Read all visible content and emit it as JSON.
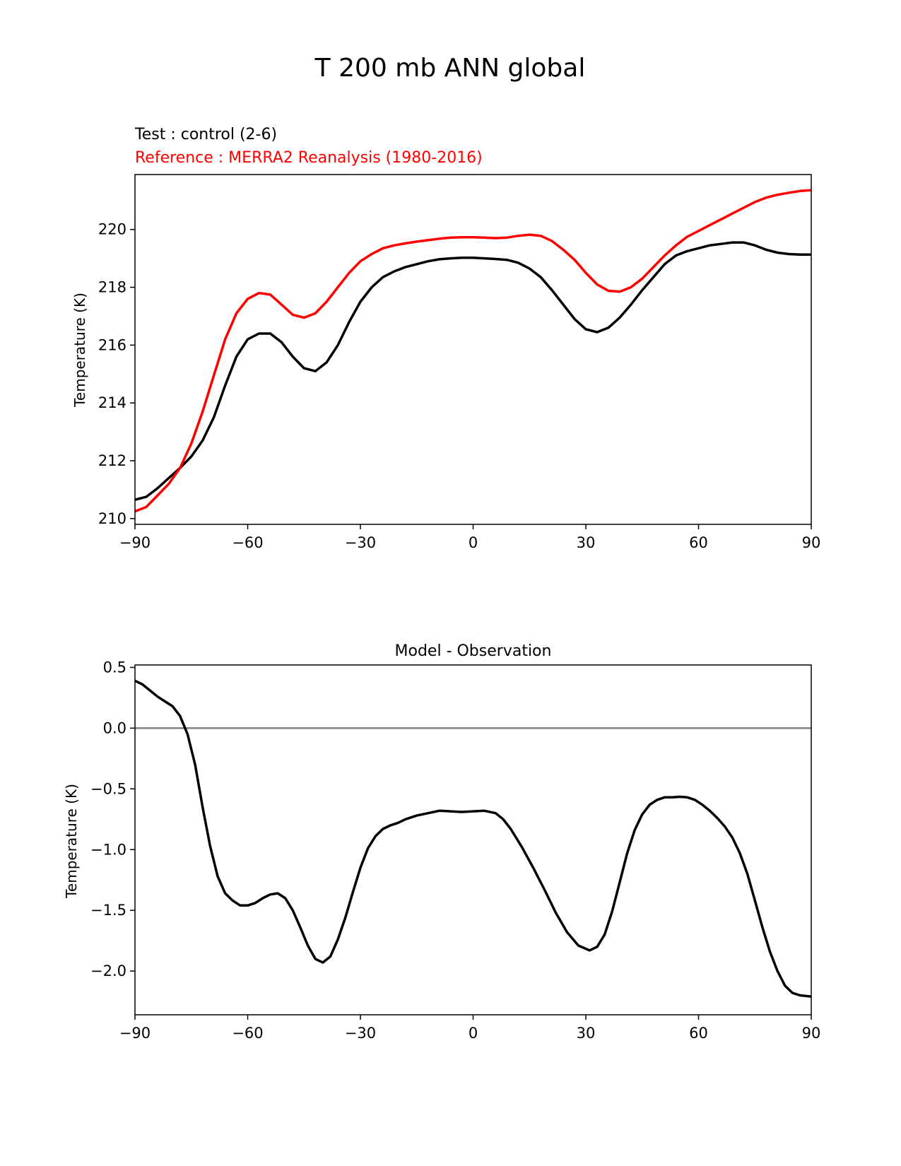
{
  "figure_title": "T 200 mb ANN global",
  "chart_data": [
    {
      "type": "line",
      "subtitle_test": "Test : control (2-6)",
      "subtitle_reference": "Reference : MERRA2 Reanalysis (1980-2016)",
      "xlabel": "",
      "ylabel": "Temperature (K)",
      "xlim": [
        -90,
        90
      ],
      "ylim": [
        209.8,
        221.9
      ],
      "xticks": [
        -90,
        -60,
        -30,
        0,
        30,
        60,
        90
      ],
      "xtick_labels": [
        "−90",
        "−60",
        "−30",
        "0",
        "30",
        "60",
        "90"
      ],
      "yticks": [
        210,
        212,
        214,
        216,
        218,
        220
      ],
      "ytick_labels": [
        "210",
        "212",
        "214",
        "216",
        "218",
        "220"
      ],
      "series": [
        {
          "name": "Test : control (2-6)",
          "color": "#000000",
          "x": [
            -90,
            -87,
            -84,
            -81,
            -78,
            -75,
            -72,
            -69,
            -66,
            -63,
            -60,
            -57,
            -54,
            -51,
            -48,
            -45,
            -42,
            -39,
            -36,
            -33,
            -30,
            -27,
            -24,
            -21,
            -18,
            -15,
            -12,
            -9,
            -6,
            -3,
            0,
            3,
            6,
            9,
            12,
            15,
            18,
            21,
            24,
            27,
            30,
            33,
            36,
            39,
            42,
            45,
            48,
            51,
            54,
            57,
            60,
            63,
            66,
            69,
            72,
            75,
            78,
            81,
            84,
            87,
            90
          ],
          "y": [
            210.65,
            210.75,
            211.05,
            211.4,
            211.75,
            212.15,
            212.7,
            213.5,
            214.6,
            215.6,
            216.2,
            216.4,
            216.4,
            216.1,
            215.6,
            215.2,
            215.1,
            215.4,
            216.0,
            216.8,
            217.5,
            218.0,
            218.35,
            218.55,
            218.7,
            218.8,
            218.9,
            218.97,
            219.0,
            219.02,
            219.02,
            219.0,
            218.98,
            218.95,
            218.85,
            218.65,
            218.35,
            217.9,
            217.4,
            216.9,
            216.55,
            216.45,
            216.6,
            216.95,
            217.4,
            217.9,
            218.35,
            218.8,
            219.1,
            219.25,
            219.35,
            219.45,
            219.5,
            219.55,
            219.55,
            219.45,
            219.3,
            219.2,
            219.15,
            219.13,
            219.13
          ]
        },
        {
          "name": "Reference : MERRA2 Reanalysis (1980-2016)",
          "color": "#ff0000",
          "x": [
            -90,
            -87,
            -84,
            -81,
            -78,
            -75,
            -72,
            -69,
            -66,
            -63,
            -60,
            -57,
            -54,
            -51,
            -48,
            -45,
            -42,
            -39,
            -36,
            -33,
            -30,
            -27,
            -24,
            -21,
            -18,
            -15,
            -12,
            -9,
            -6,
            -3,
            0,
            3,
            6,
            9,
            12,
            15,
            18,
            21,
            24,
            27,
            30,
            33,
            36,
            39,
            42,
            45,
            48,
            51,
            54,
            57,
            60,
            63,
            66,
            69,
            72,
            75,
            78,
            81,
            84,
            87,
            90
          ],
          "y": [
            210.25,
            210.4,
            210.8,
            211.2,
            211.75,
            212.6,
            213.7,
            214.95,
            216.2,
            217.1,
            217.6,
            217.8,
            217.75,
            217.4,
            217.05,
            216.95,
            217.1,
            217.5,
            218.0,
            218.5,
            218.9,
            219.15,
            219.35,
            219.45,
            219.52,
            219.58,
            219.63,
            219.68,
            219.72,
            219.73,
            219.73,
            219.72,
            219.7,
            219.72,
            219.78,
            219.82,
            219.78,
            219.6,
            219.3,
            218.95,
            218.5,
            218.1,
            217.88,
            217.85,
            218.0,
            218.3,
            218.7,
            219.1,
            219.45,
            219.75,
            219.95,
            220.15,
            220.35,
            220.55,
            220.75,
            220.95,
            221.1,
            221.2,
            221.27,
            221.33,
            221.36
          ]
        }
      ]
    },
    {
      "type": "line",
      "title": "Model - Observation",
      "xlabel": "",
      "ylabel": "Temperature (K)",
      "xlim": [
        -90,
        90
      ],
      "ylim": [
        -2.36,
        0.52
      ],
      "xticks": [
        -90,
        -60,
        -30,
        0,
        30,
        60,
        90
      ],
      "xtick_labels": [
        "−90",
        "−60",
        "−30",
        "0",
        "30",
        "60",
        "90"
      ],
      "yticks": [
        0.5,
        0.0,
        -0.5,
        -1.0,
        -1.5,
        -2.0
      ],
      "ytick_labels": [
        "0.5",
        "0.0",
        "−0.5",
        "−1.0",
        "−1.5",
        "−2.0"
      ],
      "reference_line": {
        "y": 0.0,
        "color": "#808080"
      },
      "series": [
        {
          "name": "Model - Observation",
          "color": "#000000",
          "x": [
            -90,
            -88,
            -86,
            -84,
            -82,
            -80,
            -78,
            -76,
            -74,
            -72,
            -70,
            -68,
            -66,
            -64,
            -62,
            -60,
            -58,
            -56,
            -54,
            -52,
            -50,
            -48,
            -46,
            -44,
            -42,
            -40,
            -38,
            -36,
            -34,
            -32,
            -30,
            -28,
            -26,
            -24,
            -22,
            -20,
            -18,
            -15,
            -12,
            -9,
            -6,
            -3,
            0,
            3,
            6,
            8,
            10,
            13,
            16,
            19,
            22,
            25,
            28,
            31,
            33,
            35,
            37,
            39,
            41,
            43,
            45,
            47,
            49,
            51,
            53,
            55,
            57,
            59,
            61,
            63,
            65,
            67,
            69,
            71,
            73,
            75,
            77,
            79,
            81,
            83,
            85,
            87,
            90
          ],
          "y": [
            0.39,
            0.36,
            0.31,
            0.26,
            0.22,
            0.18,
            0.1,
            -0.05,
            -0.3,
            -0.65,
            -0.97,
            -1.22,
            -1.36,
            -1.42,
            -1.46,
            -1.46,
            -1.44,
            -1.4,
            -1.37,
            -1.36,
            -1.4,
            -1.5,
            -1.64,
            -1.79,
            -1.9,
            -1.93,
            -1.88,
            -1.74,
            -1.56,
            -1.35,
            -1.15,
            -0.99,
            -0.89,
            -0.83,
            -0.8,
            -0.78,
            -0.75,
            -0.72,
            -0.7,
            -0.68,
            -0.685,
            -0.69,
            -0.685,
            -0.68,
            -0.7,
            -0.75,
            -0.83,
            -0.98,
            -1.15,
            -1.33,
            -1.52,
            -1.68,
            -1.79,
            -1.83,
            -1.8,
            -1.7,
            -1.51,
            -1.27,
            -1.03,
            -0.84,
            -0.71,
            -0.63,
            -0.59,
            -0.57,
            -0.57,
            -0.565,
            -0.57,
            -0.59,
            -0.63,
            -0.68,
            -0.74,
            -0.81,
            -0.9,
            -1.03,
            -1.2,
            -1.42,
            -1.64,
            -1.84,
            -2.0,
            -2.12,
            -2.18,
            -2.2,
            -2.21
          ]
        }
      ]
    }
  ]
}
